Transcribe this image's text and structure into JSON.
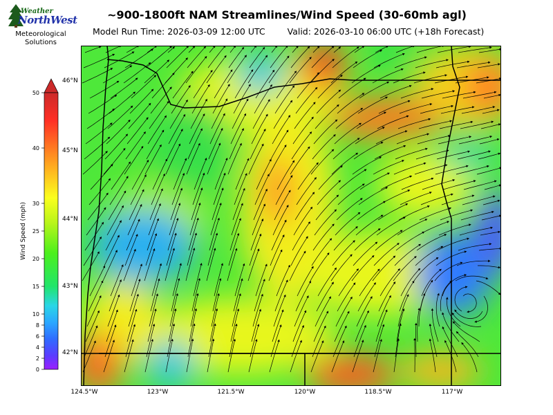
{
  "logo": {
    "word_weather": "Weather",
    "word_brand": "NorthWest",
    "org_line1": "Meteorological",
    "org_line2": "Solutions"
  },
  "header": {
    "title": "~900-1800ft NAM Streamlines/Wind Speed (30-60mb agl)",
    "model_run": "Model Run Time: 2026-03-09 12:00 UTC",
    "valid": "Valid: 2026-03-10 06:00 UTC  (+18h Forecast)"
  },
  "colorbar": {
    "label": "Wind Speed (mph)",
    "ticks": [
      "0",
      "2",
      "4",
      "6",
      "8",
      "10",
      "15",
      "20",
      "25",
      "30",
      "40",
      "50"
    ],
    "colors": [
      "#9b1fff",
      "#5a3cff",
      "#2f6cff",
      "#2aa8ff",
      "#2ad6e6",
      "#22e56b",
      "#4cf01d",
      "#b9f51a",
      "#fbff1e",
      "#ffb51f",
      "#ff7a22",
      "#ff2f25",
      "#cc2a2a"
    ]
  },
  "axes": {
    "lon_ticks": [
      "124.5°W",
      "123°W",
      "121.5°W",
      "120°W",
      "118.5°W",
      "117°W"
    ],
    "lat_ticks": [
      "46°N",
      "45°N",
      "44°N",
      "43°N",
      "42°N"
    ]
  }
}
